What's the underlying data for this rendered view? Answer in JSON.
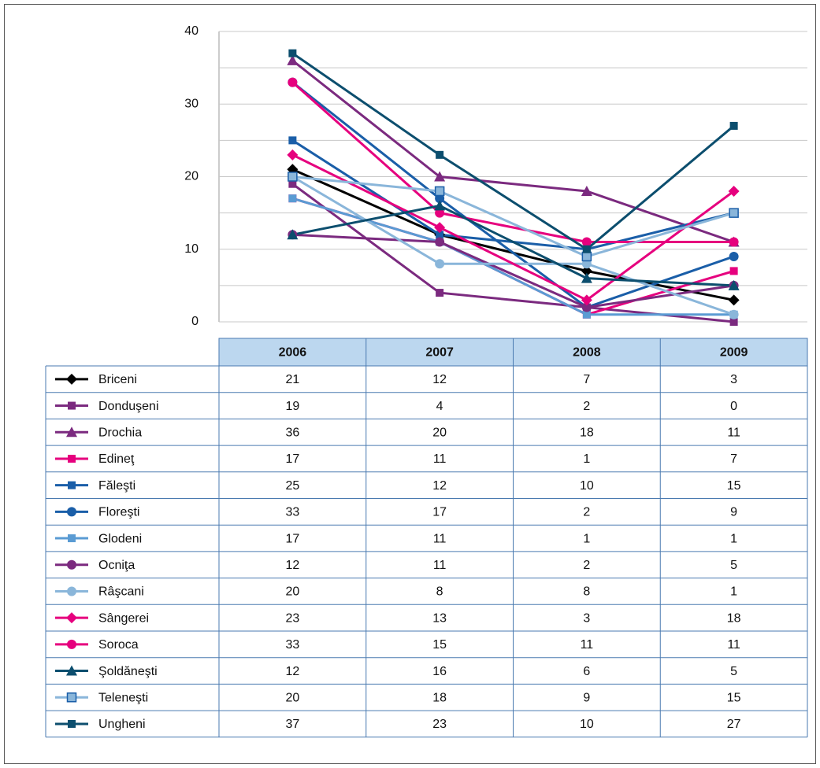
{
  "chart_data": {
    "type": "line",
    "categories": [
      "2006",
      "2007",
      "2008",
      "2009"
    ],
    "ylim": [
      0,
      40
    ],
    "yticks": [
      0,
      10,
      20,
      30,
      40
    ],
    "minor_yticks": [
      5,
      15,
      25,
      35
    ],
    "grid": true,
    "series": [
      {
        "name": "Briceni",
        "color": "#000000",
        "marker": "diamond",
        "values": [
          21,
          12,
          7,
          3
        ]
      },
      {
        "name": "Donduşeni",
        "color": "#7b2a7f",
        "marker": "square",
        "values": [
          19,
          4,
          2,
          0
        ]
      },
      {
        "name": "Drochia",
        "color": "#7b2a7f",
        "marker": "triangle",
        "values": [
          36,
          20,
          18,
          11
        ]
      },
      {
        "name": "Edineţ",
        "color": "#e6007e",
        "marker": "square",
        "values": [
          17,
          11,
          1,
          7
        ]
      },
      {
        "name": "Făleşti",
        "color": "#1a5ea8",
        "marker": "square",
        "values": [
          25,
          12,
          10,
          15
        ]
      },
      {
        "name": "Floreşti",
        "color": "#1a5ea8",
        "marker": "circle",
        "values": [
          33,
          17,
          2,
          9
        ]
      },
      {
        "name": "Glodeni",
        "color": "#5a9bd3",
        "marker": "square",
        "values": [
          17,
          11,
          1,
          1
        ]
      },
      {
        "name": "Ocniţa",
        "color": "#7b2a7f",
        "marker": "circle",
        "values": [
          12,
          11,
          2,
          5
        ]
      },
      {
        "name": "Râşcani",
        "color": "#8ab6da",
        "marker": "circle",
        "values": [
          20,
          8,
          8,
          1
        ]
      },
      {
        "name": "Sângerei",
        "color": "#e6007e",
        "marker": "diamond",
        "values": [
          23,
          13,
          3,
          18
        ]
      },
      {
        "name": "Soroca",
        "color": "#e6007e",
        "marker": "circle",
        "values": [
          33,
          15,
          11,
          11
        ]
      },
      {
        "name": "Şoldăneşti",
        "color": "#0c4e6e",
        "marker": "triangle",
        "values": [
          12,
          16,
          6,
          5
        ]
      },
      {
        "name": "Teleneşti",
        "color": "#8ab6da",
        "marker": "square-outlined",
        "values": [
          20,
          18,
          9,
          15
        ]
      },
      {
        "name": "Ungheni",
        "color": "#0c4e6e",
        "marker": "square",
        "values": [
          37,
          23,
          10,
          27
        ]
      }
    ]
  }
}
